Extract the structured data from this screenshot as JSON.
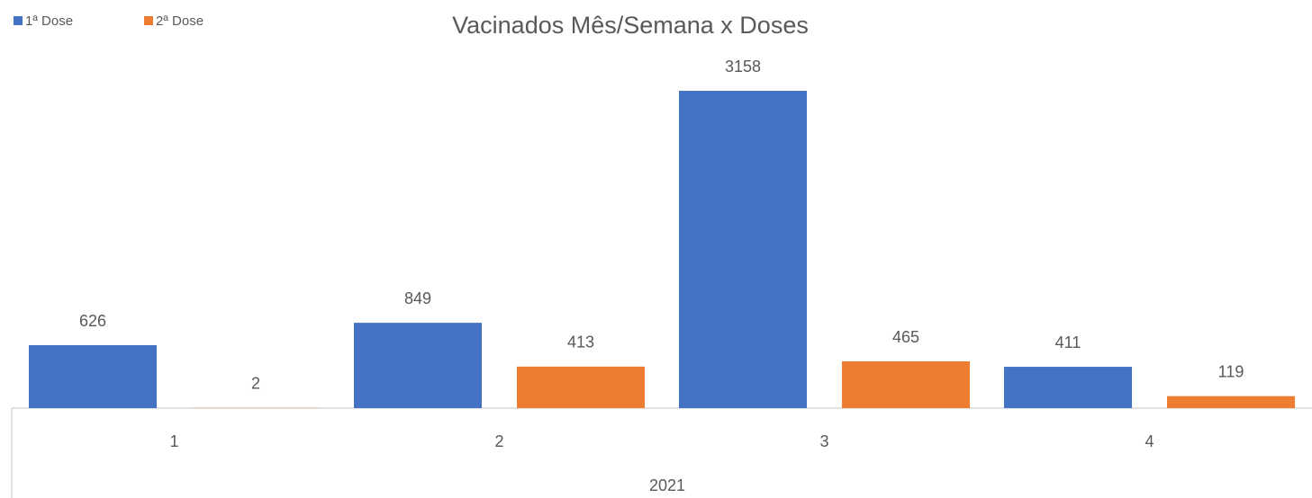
{
  "chart_data": {
    "type": "bar",
    "title": "Vacinados Mês/Semana x Doses",
    "categories": [
      "1",
      "2",
      "3",
      "4"
    ],
    "category_group": "2021",
    "series": [
      {
        "name": "1ª Dose",
        "color": "#4472c4",
        "values": [
          626,
          849,
          3158,
          411
        ]
      },
      {
        "name": "2ª Dose",
        "color": "#ed7d31",
        "values": [
          2,
          413,
          465,
          119
        ]
      }
    ],
    "legend": "top-left"
  }
}
